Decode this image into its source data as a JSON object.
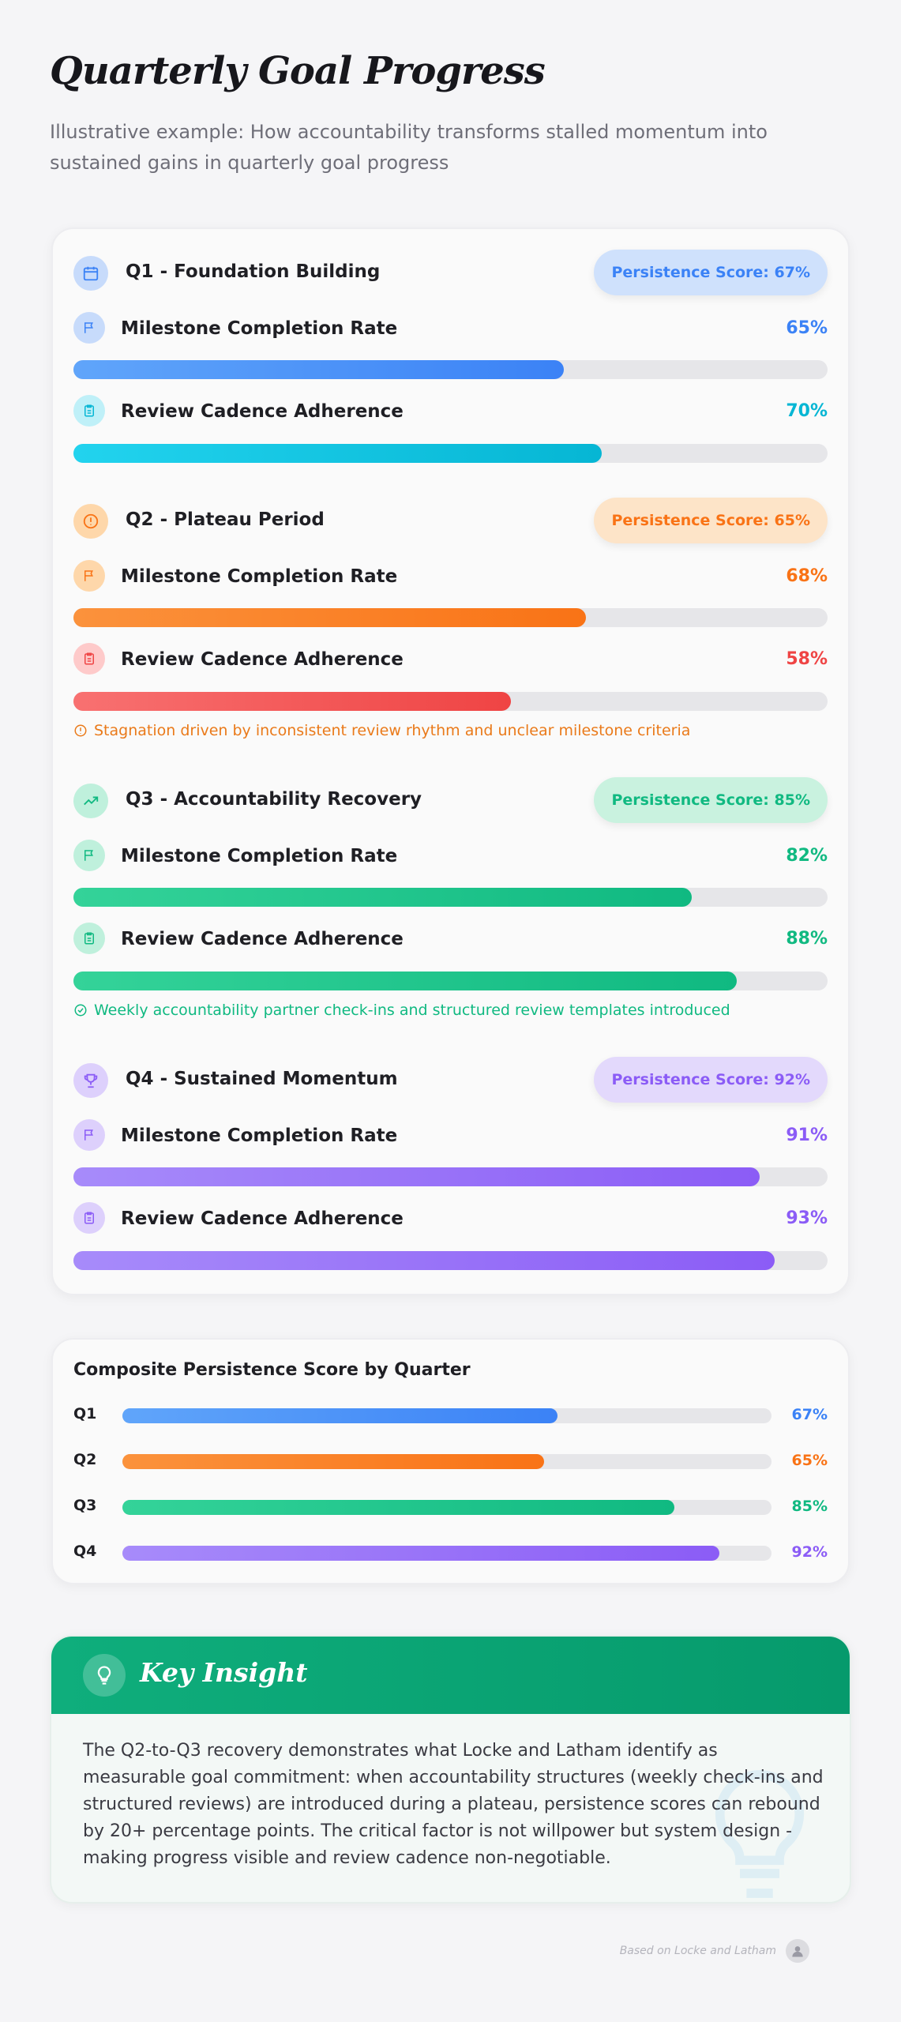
{
  "header": {
    "title": "Quarterly Goal Progress",
    "subtitle": "Illustrative example: How accountability transforms stalled momentum into sustained gains in quarterly goal progress"
  },
  "quarters": [
    {
      "title": "Q1 - Foundation Building",
      "icon": "calendar-icon",
      "persistence": "Persistence Score: 67%",
      "accent": "#3b82f6",
      "metrics": [
        {
          "label": "Milestone Completion Rate",
          "value": "65%",
          "fraction": 0.65,
          "icon": "flag-icon",
          "color": "#3b82f6"
        },
        {
          "label": "Review Cadence Adherence",
          "value": "70%",
          "fraction": 0.7,
          "icon": "clipboard-icon",
          "color": "#06b6d4"
        }
      ]
    },
    {
      "title": "Q2 - Plateau Period",
      "icon": "alert-circle-icon",
      "persistence": "Persistence Score: 65%",
      "accent": "#f97316",
      "metrics": [
        {
          "label": "Milestone Completion Rate",
          "value": "68%",
          "fraction": 0.68,
          "icon": "flag-icon",
          "color": "#f97316"
        },
        {
          "label": "Review Cadence Adherence",
          "value": "58%",
          "fraction": 0.58,
          "icon": "clipboard-icon",
          "color": "#ef4444"
        }
      ],
      "note": "Stagnation driven by inconsistent review rhythm and unclear milestone criteria"
    },
    {
      "title": "Q3 - Accountability Recovery",
      "icon": "trending-up-icon",
      "persistence": "Persistence Score: 85%",
      "accent": "#10b981",
      "metrics": [
        {
          "label": "Milestone Completion Rate",
          "value": "82%",
          "fraction": 0.82,
          "icon": "flag-icon",
          "color": "#10b981"
        },
        {
          "label": "Review Cadence Adherence",
          "value": "88%",
          "fraction": 0.88,
          "icon": "clipboard-icon",
          "color": "#10b981"
        }
      ],
      "note": "Weekly accountability partner check-ins and structured review templates introduced"
    },
    {
      "title": "Q4 - Sustained Momentum",
      "icon": "trophy-icon",
      "persistence": "Persistence Score: 92%",
      "accent": "#8b5cf6",
      "metrics": [
        {
          "label": "Milestone Completion Rate",
          "value": "91%",
          "fraction": 0.91,
          "icon": "flag-icon",
          "color": "#8b5cf6"
        },
        {
          "label": "Review Cadence Adherence",
          "value": "93%",
          "fraction": 0.93,
          "icon": "clipboard-icon",
          "color": "#8b5cf6"
        }
      ]
    }
  ],
  "composite": {
    "title": "Composite Persistence Score by Quarter",
    "rows": [
      {
        "label": "Q1",
        "value": "67%",
        "fraction": 0.67,
        "color": "#3b82f6"
      },
      {
        "label": "Q2",
        "value": "65%",
        "fraction": 0.65,
        "color": "#f97316"
      },
      {
        "label": "Q3",
        "value": "85%",
        "fraction": 0.85,
        "color": "#10b981"
      },
      {
        "label": "Q4",
        "value": "92%",
        "fraction": 0.92,
        "color": "#8b5cf6"
      }
    ]
  },
  "insight": {
    "title": "Key Insight",
    "icon": "lightbulb-icon",
    "body": "The Q2-to-Q3 recovery demonstrates what Locke and Latham identify as measurable goal commitment: when accountability structures (weekly check-ins and structured reviews) are introduced during a plateau, persistence scores can rebound by 20+ percentage points. The critical factor is not willpower but system design - making progress visible and review cadence non-negotiable."
  },
  "footer": {
    "text": "Based on Locke and Latham",
    "icon": "avatar-icon"
  }
}
